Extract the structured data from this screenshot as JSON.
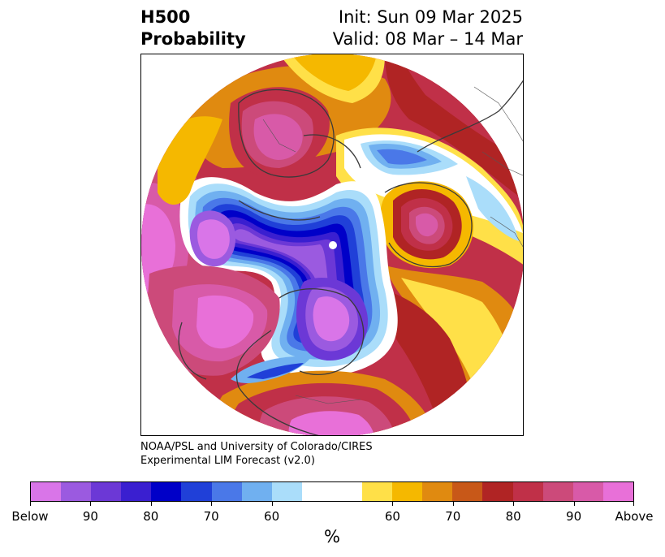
{
  "title": {
    "left_line1": "H500",
    "left_line2": "Probability",
    "right_line1": "Init: Sun 09 Mar 2025",
    "right_line2": "Valid: 08 Mar – 14 Mar"
  },
  "credit": {
    "line1": "NOAA/PSL and University of Colorado/CIRES",
    "line2": "Experimental LIM Forecast (v2.0)"
  },
  "colorbar": {
    "below_colors": [
      "#d975e8",
      "#9b5ae0",
      "#6c38d6",
      "#3a1fd0",
      "#0000c8",
      "#2040d8",
      "#4a78e8",
      "#70b0f0",
      "#aaddfa"
    ],
    "neutral_color": "#ffffff",
    "above_colors": [
      "#ffe048",
      "#f5b800",
      "#e08a10",
      "#c85818",
      "#b02424",
      "#c03048",
      "#cc4a7a",
      "#d85aa8",
      "#e870d8"
    ],
    "tick_labels": [
      "Below",
      "90",
      "80",
      "70",
      "60",
      "60",
      "70",
      "80",
      "90",
      "Above"
    ],
    "units": "%"
  }
}
